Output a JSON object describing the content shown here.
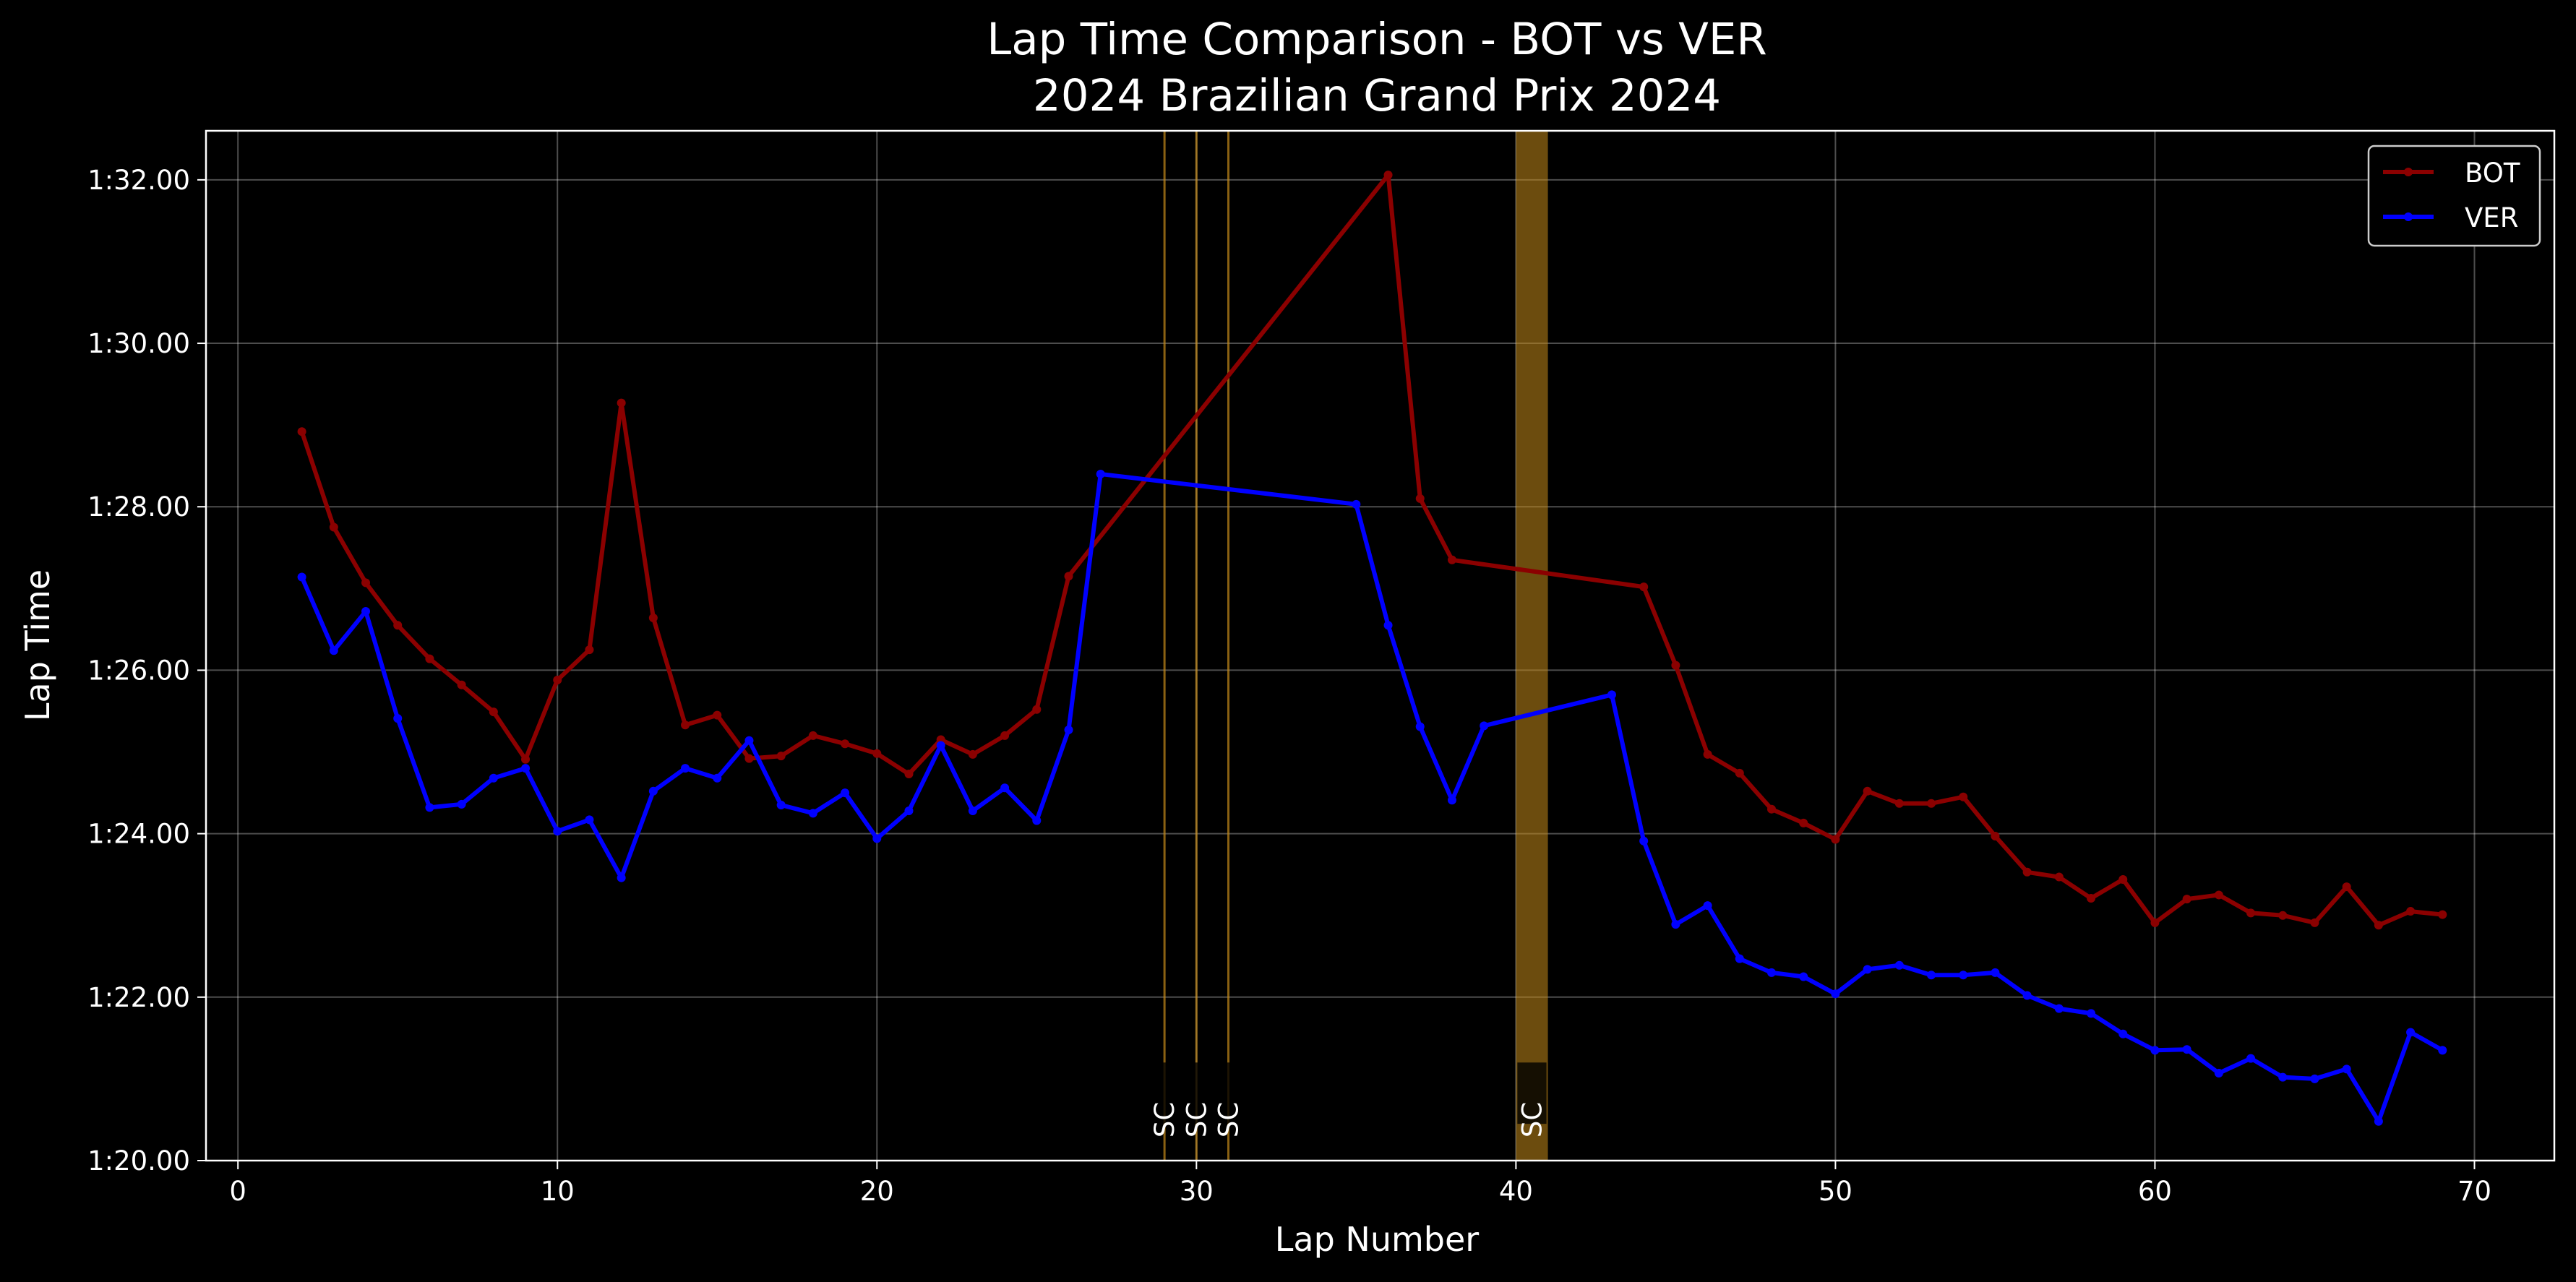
{
  "chart_data": {
    "type": "line",
    "title": "Lap Time Comparison - BOT vs VER",
    "subtitle": "2024 Brazilian Grand Prix 2024",
    "xlabel": "Lap Number",
    "ylabel": "Lap Time",
    "xlim": [
      -1,
      72.5
    ],
    "ylim": [
      80,
      92.6
    ],
    "x_ticks": [
      0,
      10,
      20,
      30,
      40,
      50,
      60,
      70
    ],
    "y_ticks": [
      {
        "value": 80,
        "label": "1:20.00"
      },
      {
        "value": 82,
        "label": "1:22.00"
      },
      {
        "value": 84,
        "label": "1:24.00"
      },
      {
        "value": 86,
        "label": "1:26.00"
      },
      {
        "value": 88,
        "label": "1:28.00"
      },
      {
        "value": 90,
        "label": "1:30.00"
      },
      {
        "value": 92,
        "label": "1:32.00"
      }
    ],
    "grid": true,
    "legend_position": "top-right",
    "safety_car": [
      {
        "lap": 29,
        "label": "SC"
      },
      {
        "lap": 30,
        "label": "SC"
      },
      {
        "lap": 31,
        "label": "SC"
      },
      {
        "lap": 40,
        "label": "SC"
      }
    ],
    "series": [
      {
        "name": "BOT",
        "color": "#8b0000",
        "x": [
          2,
          3,
          4,
          5,
          6,
          7,
          8,
          9,
          10,
          11,
          12,
          13,
          14,
          15,
          16,
          17,
          18,
          19,
          20,
          21,
          22,
          23,
          24,
          25,
          26,
          36,
          37,
          38,
          44,
          45,
          46,
          47,
          48,
          49,
          50,
          51,
          52,
          53,
          54,
          55,
          56,
          57,
          58,
          59,
          60,
          61,
          62,
          63,
          64,
          65,
          66,
          67,
          68,
          69
        ],
        "y": [
          88.92,
          87.75,
          87.07,
          86.55,
          86.14,
          85.82,
          85.49,
          84.91,
          85.88,
          86.25,
          89.27,
          86.64,
          85.33,
          85.45,
          84.92,
          84.95,
          85.2,
          85.1,
          84.98,
          84.73,
          85.15,
          84.97,
          85.2,
          85.52,
          87.15,
          92.06,
          88.1,
          87.35,
          87.02,
          86.06,
          84.97,
          84.74,
          84.3,
          84.13,
          83.93,
          84.52,
          84.37,
          84.37,
          84.45,
          83.97,
          83.53,
          83.47,
          83.21,
          83.44,
          82.91,
          83.2,
          83.25,
          83.03,
          83.0,
          82.91,
          83.35,
          82.88,
          83.05,
          83.01
        ]
      },
      {
        "name": "VER",
        "color": "#0000ff",
        "x": [
          2,
          3,
          4,
          5,
          6,
          7,
          8,
          9,
          10,
          11,
          12,
          13,
          14,
          15,
          16,
          17,
          18,
          19,
          20,
          21,
          22,
          23,
          24,
          25,
          26,
          27,
          35,
          36,
          37,
          38,
          39,
          43,
          44,
          45,
          46,
          47,
          48,
          49,
          50,
          51,
          52,
          53,
          54,
          55,
          56,
          57,
          58,
          59,
          60,
          61,
          62,
          63,
          64,
          65,
          66,
          67,
          68,
          69
        ],
        "y": [
          87.14,
          86.24,
          86.72,
          85.41,
          84.32,
          84.36,
          84.68,
          84.8,
          84.03,
          84.17,
          83.46,
          84.52,
          84.8,
          84.68,
          85.14,
          84.35,
          84.25,
          84.5,
          83.94,
          84.28,
          85.08,
          84.28,
          84.56,
          84.16,
          85.27,
          88.4,
          88.03,
          86.55,
          85.31,
          84.41,
          85.32,
          85.7,
          83.91,
          82.89,
          83.12,
          82.47,
          82.3,
          82.25,
          82.04,
          82.34,
          82.39,
          82.27,
          82.27,
          82.3,
          82.02,
          81.86,
          81.8,
          81.55,
          81.35,
          81.36,
          81.07,
          81.25,
          81.02,
          81.0,
          81.12,
          80.48,
          81.57,
          81.35
        ]
      }
    ]
  }
}
